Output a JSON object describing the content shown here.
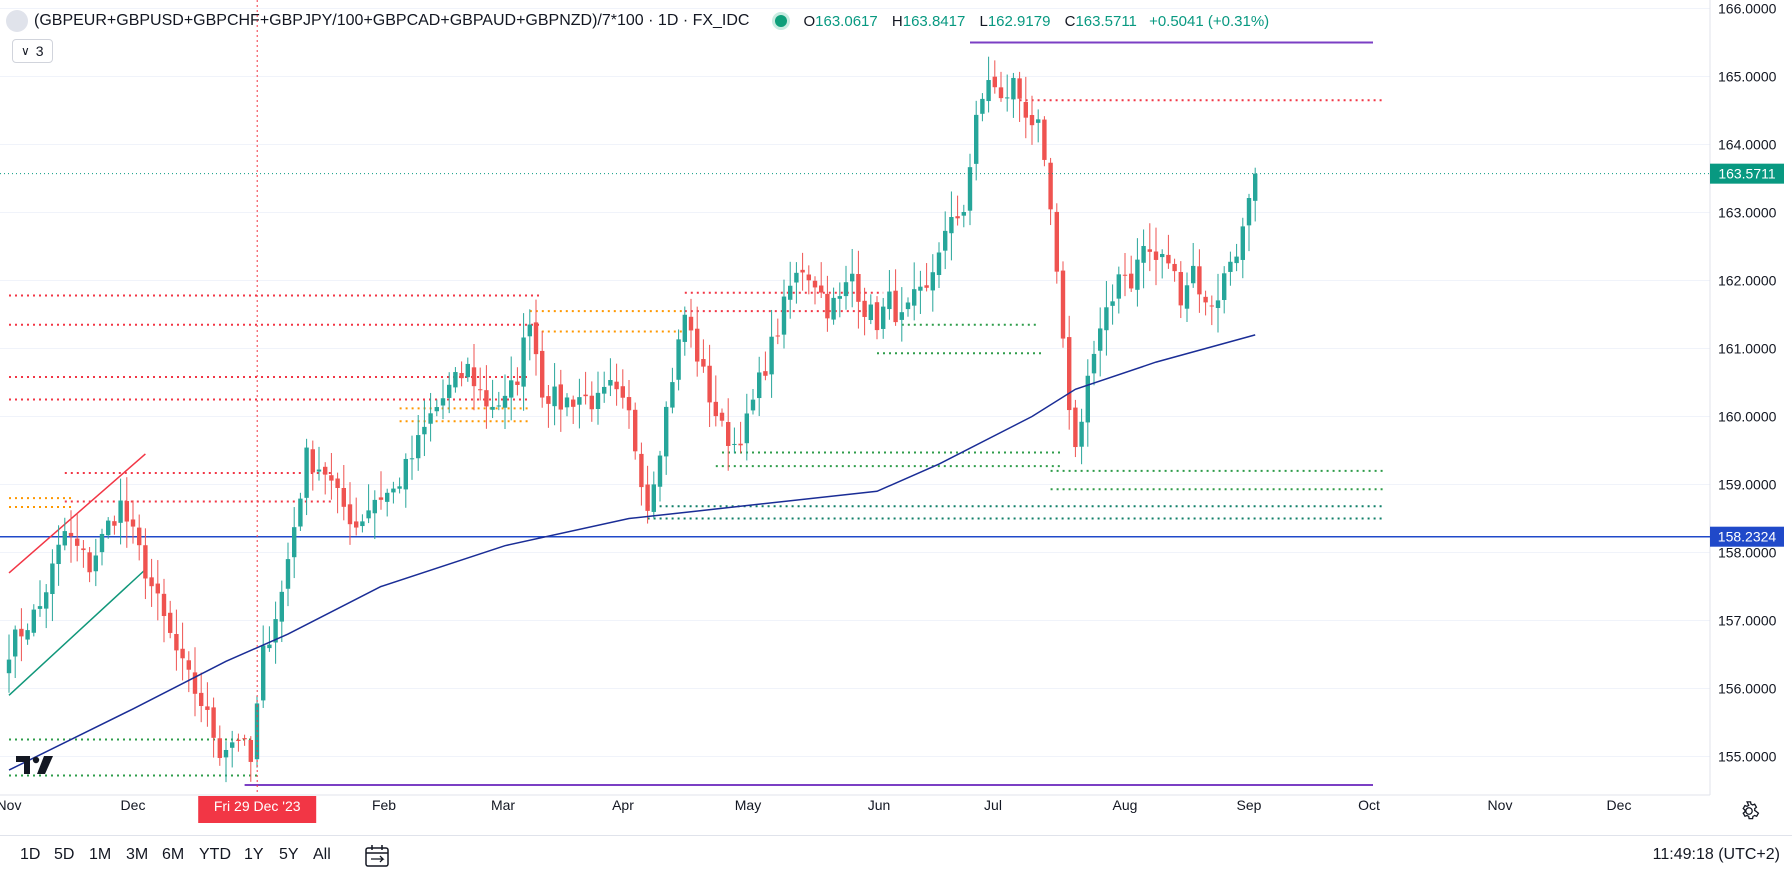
{
  "header": {
    "symbol": "(GBPEUR+GBPUSD+GBPCHF+GBPJPY/100+GBPCAD+GBPAUD+GBPNZD)/7*100 · 1D · FX_IDC",
    "o_label": "O",
    "o_value": "163.0617",
    "h_label": "H",
    "h_value": "163.8417",
    "l_label": "L",
    "l_value": "162.9179",
    "c_label": "C",
    "c_value": "163.5711",
    "change": "+0.5041 (+0.31%)"
  },
  "indicator_badge": {
    "chevron": "∨",
    "count": "3"
  },
  "colors": {
    "up": "#26a69a",
    "down": "#ef5350",
    "ma": "#1a2d96",
    "hline": "#2049c9",
    "purple": "#7b3fc4",
    "red_dot": "#f23645",
    "green_dot": "#089981",
    "orange_dot": "#ff9800",
    "price_tag": "#089981",
    "crosshair_tag": "#f23645"
  },
  "chart_data": {
    "type": "candlestick",
    "title": "(GBPEUR+GBPUSD+GBPCHF+GBPJPY/100+GBPCAD+GBPAUD+GBPNZD)/7*100 · 1D · FX_IDC",
    "y_ticks": [
      "166.0000",
      "165.0000",
      "164.0000",
      "163.0000",
      "162.0000",
      "161.0000",
      "160.0000",
      "159.0000",
      "158.0000",
      "157.0000",
      "156.0000",
      "155.0000"
    ],
    "ylim": [
      154.55,
      166.0
    ],
    "x_ticks": [
      "Nov",
      "Dec",
      "Feb",
      "Mar",
      "Apr",
      "May",
      "Jun",
      "Jul",
      "Aug",
      "Sep",
      "Oct",
      "Nov",
      "Dec"
    ],
    "crosshair_label": "Fri 29 Dec '23",
    "last_price_label": "163.5711",
    "hline_label": "158.2324",
    "last_price": 163.5711,
    "hline_value": 158.2324,
    "close_anchors": [
      [
        0,
        156.6
      ],
      [
        5,
        157.2
      ],
      [
        9,
        158.3
      ],
      [
        13,
        157.8
      ],
      [
        16,
        158.4
      ],
      [
        18,
        158.7
      ],
      [
        21,
        158.0
      ],
      [
        25,
        157.0
      ],
      [
        28,
        156.3
      ],
      [
        31,
        155.8
      ],
      [
        34,
        155.1
      ],
      [
        37,
        155.3
      ],
      [
        39,
        154.9
      ],
      [
        41,
        156.5
      ],
      [
        44,
        157.4
      ],
      [
        46,
        158.4
      ],
      [
        48,
        159.4
      ],
      [
        51,
        159.2
      ],
      [
        53,
        158.8
      ],
      [
        56,
        158.4
      ],
      [
        59,
        158.8
      ],
      [
        62,
        158.9
      ],
      [
        65,
        159.4
      ],
      [
        68,
        160.0
      ],
      [
        71,
        160.4
      ],
      [
        74,
        160.7
      ],
      [
        77,
        160.2
      ],
      [
        80,
        160.2
      ],
      [
        82,
        160.6
      ],
      [
        84,
        161.5
      ],
      [
        86,
        160.4
      ],
      [
        89,
        160.2
      ],
      [
        92,
        160.3
      ],
      [
        95,
        160.2
      ],
      [
        97,
        160.4
      ],
      [
        100,
        160.0
      ],
      [
        103,
        158.7
      ],
      [
        105,
        159.6
      ],
      [
        107,
        160.6
      ],
      [
        109,
        161.5
      ],
      [
        111,
        160.9
      ],
      [
        113,
        160.3
      ],
      [
        115,
        159.8
      ],
      [
        117,
        159.6
      ],
      [
        119,
        159.9
      ],
      [
        121,
        160.5
      ],
      [
        124,
        161.3
      ],
      [
        126,
        161.9
      ],
      [
        128,
        162.2
      ],
      [
        130,
        162.0
      ],
      [
        132,
        161.6
      ],
      [
        134,
        161.7
      ],
      [
        136,
        162.1
      ],
      [
        138,
        161.6
      ],
      [
        140,
        161.4
      ],
      [
        142,
        161.7
      ],
      [
        144,
        161.4
      ],
      [
        146,
        161.7
      ],
      [
        148,
        161.8
      ],
      [
        150,
        162.5
      ],
      [
        152,
        162.8
      ],
      [
        154,
        163.1
      ],
      [
        156,
        164.3
      ],
      [
        158,
        165.0
      ],
      [
        160,
        164.6
      ],
      [
        162,
        164.9
      ],
      [
        164,
        164.5
      ],
      [
        166,
        164.2
      ],
      [
        168,
        163.0
      ],
      [
        169,
        162.0
      ],
      [
        170,
        161.0
      ],
      [
        171,
        160.2
      ],
      [
        172,
        159.5
      ],
      [
        174,
        160.6
      ],
      [
        176,
        161.2
      ],
      [
        178,
        161.7
      ],
      [
        179,
        162.2
      ],
      [
        181,
        162.0
      ],
      [
        183,
        162.5
      ],
      [
        185,
        162.3
      ],
      [
        187,
        162.3
      ],
      [
        189,
        161.8
      ],
      [
        191,
        162.2
      ],
      [
        193,
        161.6
      ],
      [
        195,
        161.8
      ],
      [
        197,
        162.3
      ],
      [
        199,
        162.7
      ],
      [
        200,
        163.1
      ],
      [
        201,
        163.5711
      ]
    ],
    "ma_points": [
      [
        0,
        154.8
      ],
      [
        20,
        155.7
      ],
      [
        35,
        156.4
      ],
      [
        45,
        156.8
      ],
      [
        60,
        157.5
      ],
      [
        80,
        158.1
      ],
      [
        100,
        158.5
      ],
      [
        110,
        158.6
      ],
      [
        140,
        158.9
      ],
      [
        150,
        159.3
      ],
      [
        165,
        160.0
      ],
      [
        172,
        160.4
      ],
      [
        185,
        160.8
      ],
      [
        201,
        161.2
      ]
    ],
    "horizontal_levels": [
      {
        "style": "red-dotted",
        "y": 161.78,
        "from": 0,
        "to": 86
      },
      {
        "style": "red-dotted",
        "y": 161.35,
        "from": 0,
        "to": 86
      },
      {
        "style": "red-dotted",
        "y": 160.58,
        "from": 0,
        "to": 84
      },
      {
        "style": "red-dotted",
        "y": 160.25,
        "from": 0,
        "to": 84
      },
      {
        "style": "red-dotted",
        "y": 159.17,
        "from": 9,
        "to": 52
      },
      {
        "style": "red-dotted",
        "y": 158.75,
        "from": 9,
        "to": 52
      },
      {
        "style": "orange-dotted",
        "y": 158.8,
        "from": 0,
        "to": 10
      },
      {
        "style": "orange-dotted",
        "y": 158.67,
        "from": 0,
        "to": 10
      },
      {
        "style": "orange-dotted",
        "y": 161.55,
        "from": 84,
        "to": 109
      },
      {
        "style": "orange-dotted",
        "y": 161.25,
        "from": 84,
        "to": 109
      },
      {
        "style": "orange-dotted",
        "y": 160.12,
        "from": 63,
        "to": 84
      },
      {
        "style": "orange-dotted",
        "y": 159.93,
        "from": 63,
        "to": 84
      },
      {
        "style": "red-dotted",
        "y": 161.82,
        "from": 109,
        "to": 141
      },
      {
        "style": "red-dotted",
        "y": 161.55,
        "from": 109,
        "to": 141
      },
      {
        "style": "red-dotted",
        "y": 164.65,
        "from": 163,
        "to": 222
      },
      {
        "style": "green-dotted",
        "y": 161.35,
        "from": 144,
        "to": 166
      },
      {
        "style": "green-dotted",
        "y": 160.93,
        "from": 140,
        "to": 167
      },
      {
        "style": "green-dotted",
        "y": 159.47,
        "from": 115,
        "to": 170
      },
      {
        "style": "green-dotted",
        "y": 159.27,
        "from": 114,
        "to": 170
      },
      {
        "style": "green-dotted",
        "y": 159.2,
        "from": 168,
        "to": 222
      },
      {
        "style": "green-dotted",
        "y": 158.93,
        "from": 168,
        "to": 222
      },
      {
        "style": "teal-dotted",
        "y": 158.68,
        "from": 103,
        "to": 222
      },
      {
        "style": "teal-dotted",
        "y": 158.5,
        "from": 103,
        "to": 222
      },
      {
        "style": "green-dotted",
        "y": 155.25,
        "from": 0,
        "to": 40
      },
      {
        "style": "green-dotted",
        "y": 154.72,
        "from": 0,
        "to": 40
      },
      {
        "style": "purple-solid",
        "y": 165.5,
        "from": 155,
        "to": 220
      },
      {
        "style": "purple-solid",
        "y": 154.58,
        "from": 38,
        "to": 220
      }
    ],
    "trend_lines": [
      {
        "color": "red",
        "from": [
          0,
          157.7
        ],
        "to": [
          22,
          159.45
        ]
      },
      {
        "color": "green",
        "from": [
          0,
          155.9
        ],
        "to": [
          22,
          157.75
        ]
      }
    ],
    "crosshair_index": 36
  },
  "bottom_bar": {
    "ranges": [
      "1D",
      "5D",
      "1M",
      "3M",
      "6M",
      "YTD",
      "1Y",
      "5Y",
      "All"
    ],
    "time": "11:49:18 (UTC+2)"
  }
}
